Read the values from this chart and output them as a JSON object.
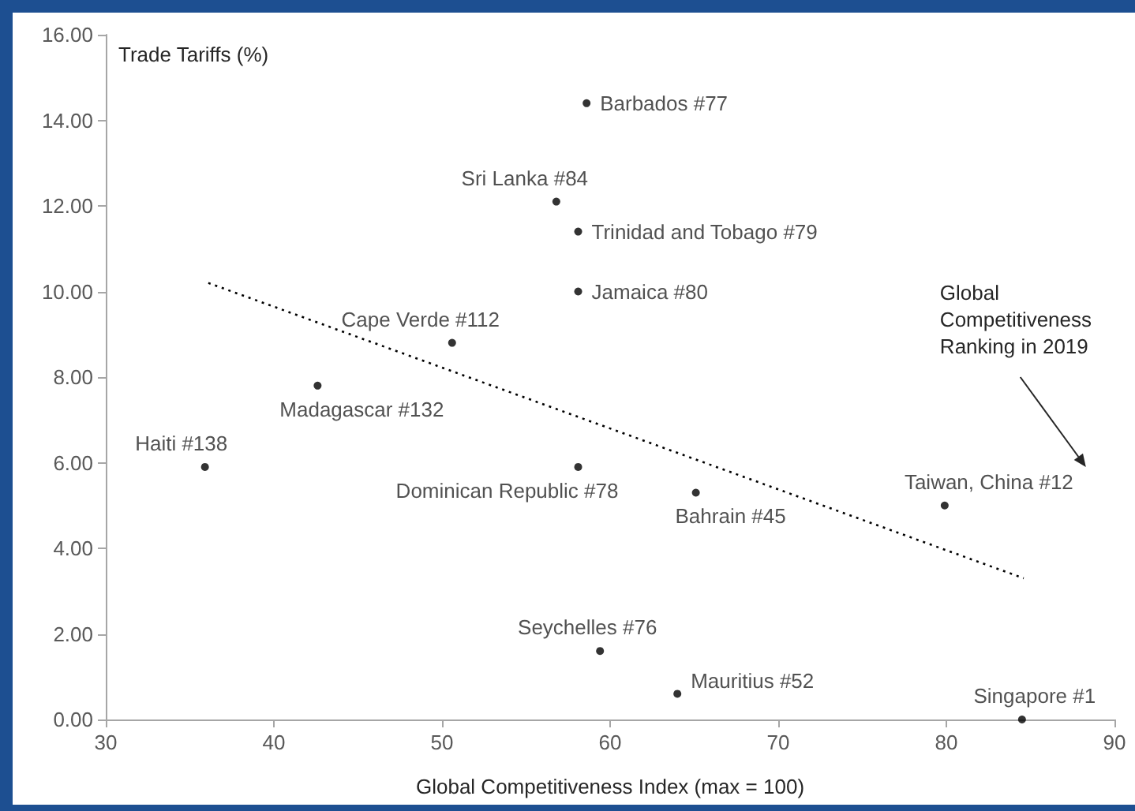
{
  "chart_data": {
    "type": "scatter",
    "xlabel": "Global Competitiveness Index (max = 100)",
    "ylabel": "Trade Tariffs (%)",
    "xlim": [
      30,
      90
    ],
    "xticks": [
      30,
      40,
      50,
      60,
      70,
      80,
      90
    ],
    "ylim": [
      0,
      16
    ],
    "yticks": [
      {
        "value": 0,
        "label": "0.00"
      },
      {
        "value": 2,
        "label": "2.00"
      },
      {
        "value": 4,
        "label": "4.00"
      },
      {
        "value": 6,
        "label": "6.00"
      },
      {
        "value": 8,
        "label": "8.00"
      },
      {
        "value": 10,
        "label": "10.00"
      },
      {
        "value": 12,
        "label": "12.00"
      },
      {
        "value": 14,
        "label": "14.00"
      },
      {
        "value": 16,
        "label": "16.00"
      }
    ],
    "marker": "circle",
    "series": [
      {
        "type": "scatter",
        "color": "#000000",
        "x": [
          58.6,
          56.8,
          58.1,
          58.1,
          50.6,
          42.6,
          35.9,
          58.1,
          65.1,
          79.9,
          59.4,
          64.0,
          84.5
        ],
        "values": [
          14.4,
          12.1,
          11.4,
          10.0,
          8.8,
          7.8,
          5.9,
          5.9,
          5.3,
          5.0,
          1.6,
          0.6,
          0.0
        ]
      },
      {
        "type": "line",
        "color": "#000000",
        "line_style": "dotted",
        "marker": "none",
        "x": [
          36.1,
          84.6
        ],
        "values": [
          10.2,
          3.3
        ]
      }
    ],
    "annotations": [
      {
        "text": "Barbados #77",
        "x": 58.6,
        "y": 14.4
      },
      {
        "text": "Sri Lanka #84",
        "x": 56.8,
        "y": 12.1
      },
      {
        "text": "Trinidad and Tobago #79",
        "x": 58.1,
        "y": 11.4
      },
      {
        "text": "Jamaica #80",
        "x": 58.1,
        "y": 10.0
      },
      {
        "text": "Cape Verde #112",
        "x": 50.6,
        "y": 8.8
      },
      {
        "text": "Madagascar #132",
        "x": 42.6,
        "y": 7.8
      },
      {
        "text": "Haiti #138",
        "x": 35.9,
        "y": 5.9
      },
      {
        "text": "Dominican Republic #78",
        "x": 58.1,
        "y": 5.9
      },
      {
        "text": "Bahrain #45",
        "x": 65.1,
        "y": 5.3
      },
      {
        "text": "Taiwan, China #12",
        "x": 79.9,
        "y": 5.0
      },
      {
        "text": "Seychelles #76",
        "x": 59.4,
        "y": 1.6
      },
      {
        "text": "Mauritius #52",
        "x": 64.0,
        "y": 0.6
      },
      {
        "text": "Singapore #1",
        "x": 84.5,
        "y": 0.0
      },
      "Global\nCompetitiveness\nRanking in 2019"
    ]
  }
}
